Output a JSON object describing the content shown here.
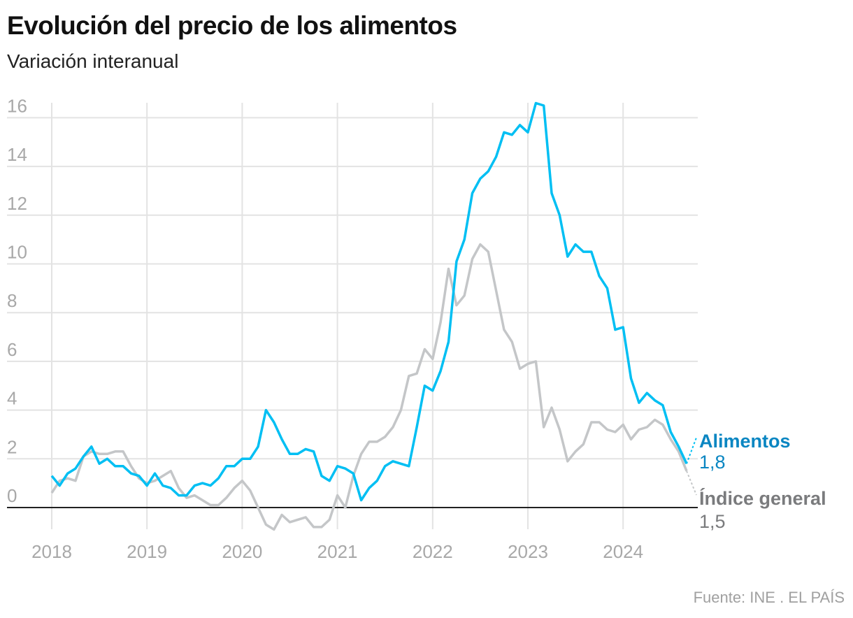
{
  "chart_data": {
    "type": "line",
    "title": "Evolución del precio de los alimentos",
    "subtitle": "Variación interanual",
    "source": "Fuente: INE . EL PAÍS",
    "xlabel": "",
    "ylabel": "",
    "ylim": [
      -1,
      16.6
    ],
    "yticks": [
      0,
      2,
      4,
      6,
      8,
      10,
      12,
      14,
      16
    ],
    "x_start": "2018-01",
    "frequency": "monthly",
    "xticks": [
      "2018",
      "2019",
      "2020",
      "2021",
      "2022",
      "2023",
      "2024"
    ],
    "grid": true,
    "series": [
      {
        "name": "Índice general",
        "color": "#c4c6c8",
        "label_color": "#7a7b7d",
        "last_label": "1,5",
        "values": [
          0.6,
          1.1,
          1.2,
          1.1,
          2.1,
          2.3,
          2.2,
          2.2,
          2.3,
          2.3,
          1.7,
          1.2,
          1.0,
          1.1,
          1.3,
          1.5,
          0.8,
          0.4,
          0.5,
          0.3,
          0.1,
          0.1,
          0.4,
          0.8,
          1.1,
          0.7,
          0.0,
          -0.7,
          -0.9,
          -0.3,
          -0.6,
          -0.5,
          -0.4,
          -0.8,
          -0.8,
          -0.5,
          0.5,
          0.0,
          1.3,
          2.2,
          2.7,
          2.7,
          2.9,
          3.3,
          4.0,
          5.4,
          5.5,
          6.5,
          6.1,
          7.6,
          9.8,
          8.3,
          8.7,
          10.2,
          10.8,
          10.5,
          8.9,
          7.3,
          6.8,
          5.7,
          5.9,
          6.0,
          3.3,
          4.1,
          3.2,
          1.9,
          2.3,
          2.6,
          3.5,
          3.5,
          3.2,
          3.1,
          3.4,
          2.8,
          3.2,
          3.3,
          3.6,
          3.4,
          2.8,
          2.3,
          1.5
        ]
      },
      {
        "name": "Alimentos",
        "color": "#00bff3",
        "label_color": "#0a86c2",
        "last_label": "1,8",
        "values": [
          1.3,
          0.9,
          1.4,
          1.6,
          2.1,
          2.5,
          1.8,
          2.0,
          1.7,
          1.7,
          1.4,
          1.3,
          0.9,
          1.4,
          0.9,
          0.8,
          0.5,
          0.5,
          0.9,
          1.0,
          0.9,
          1.2,
          1.7,
          1.7,
          2.0,
          2.0,
          2.5,
          4.0,
          3.5,
          2.8,
          2.2,
          2.2,
          2.4,
          2.3,
          1.3,
          1.1,
          1.7,
          1.6,
          1.4,
          0.3,
          0.8,
          1.1,
          1.7,
          1.9,
          1.8,
          1.7,
          3.3,
          5.0,
          4.8,
          5.6,
          6.8,
          10.1,
          11.0,
          12.9,
          13.5,
          13.8,
          14.4,
          15.4,
          15.3,
          15.7,
          15.4,
          16.6,
          16.5,
          12.9,
          12.0,
          10.3,
          10.8,
          10.5,
          10.5,
          9.5,
          9.0,
          7.3,
          7.4,
          5.3,
          4.3,
          4.7,
          4.4,
          4.2,
          3.1,
          2.5,
          1.8
        ]
      }
    ]
  }
}
